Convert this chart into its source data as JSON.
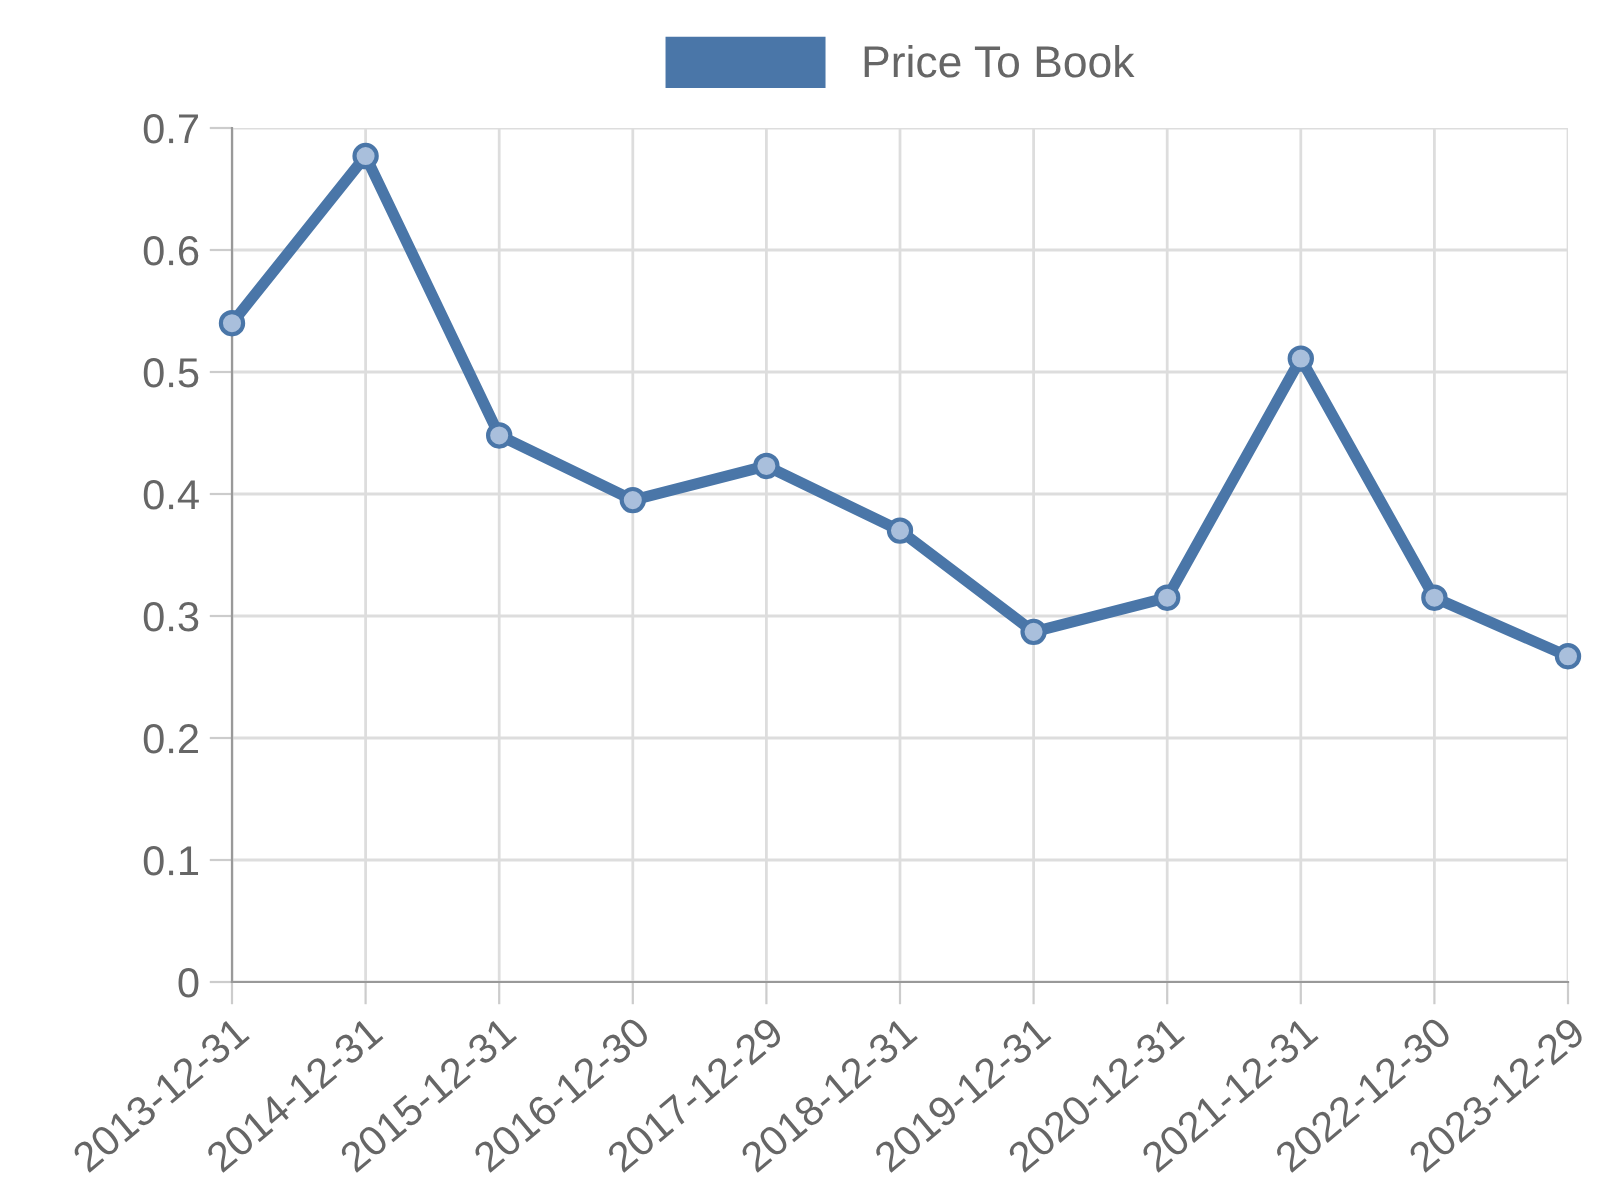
{
  "chart_data": {
    "type": "line",
    "categories": [
      "2013-12-31",
      "2014-12-31",
      "2015-12-31",
      "2016-12-30",
      "2017-12-29",
      "2018-12-31",
      "2019-12-31",
      "2020-12-31",
      "2021-12-31",
      "2022-12-30",
      "2023-12-29"
    ],
    "series": [
      {
        "name": "Price To Book",
        "color": "#4a76a8",
        "values": [
          0.54,
          0.677,
          0.448,
          0.395,
          0.423,
          0.37,
          0.287,
          0.315,
          0.511,
          0.315,
          0.267
        ]
      }
    ],
    "ylim": [
      0,
      0.7
    ],
    "yticks": [
      0,
      0.1,
      0.2,
      0.3,
      0.4,
      0.5,
      0.6,
      0.7
    ],
    "grid": true,
    "legend": "top",
    "marker": "circle",
    "line_style": "solid"
  }
}
